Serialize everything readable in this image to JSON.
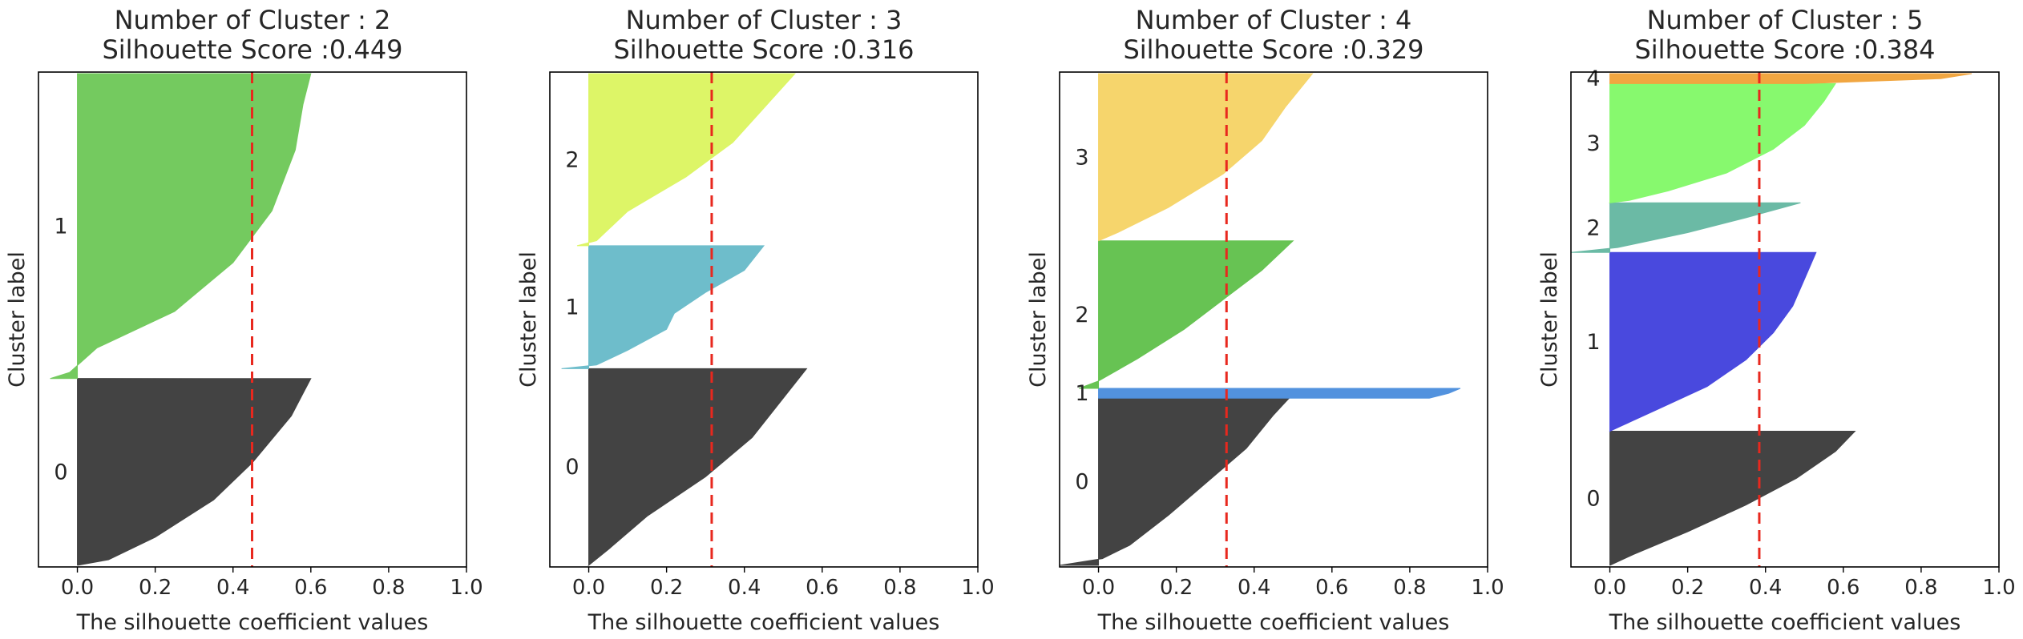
{
  "chart_data": [
    {
      "type": "silhouette",
      "title_line1": "Number of Cluster : 2",
      "title_line2": "Silhouette Score :0.449",
      "xlabel": "The silhouette coefficient values",
      "ylabel": "Cluster label",
      "xlim": [
        -0.1,
        1.0
      ],
      "xticks": [
        "0.0",
        "0.2",
        "0.4",
        "0.6",
        "0.8",
        "1.0"
      ],
      "score": 0.449,
      "clusters": [
        {
          "label": "0",
          "size": 0.38,
          "color": "#404040",
          "profile": [
            [
              0,
              0.6
            ],
            [
              0.2,
              0.55
            ],
            [
              0.45,
              0.45
            ],
            [
              0.65,
              0.35
            ],
            [
              0.85,
              0.2
            ],
            [
              0.97,
              0.08
            ],
            [
              1,
              0
            ]
          ]
        },
        {
          "label": "1",
          "size": 0.62,
          "color": "#72c95c",
          "profile": [
            [
              0,
              0.6
            ],
            [
              0.1,
              0.58
            ],
            [
              0.25,
              0.56
            ],
            [
              0.45,
              0.5
            ],
            [
              0.62,
              0.4
            ],
            [
              0.78,
              0.25
            ],
            [
              0.9,
              0.05
            ],
            [
              0.98,
              -0.02
            ],
            [
              1,
              -0.07
            ]
          ]
        }
      ]
    },
    {
      "type": "silhouette",
      "title_line1": "Number of Cluster : 3",
      "title_line2": "Silhouette Score :0.316",
      "xlabel": "The silhouette coefficient values",
      "ylabel": "Cluster label",
      "xlim": [
        -0.1,
        1.0
      ],
      "xticks": [
        "0.0",
        "0.2",
        "0.4",
        "0.6",
        "0.8",
        "1.0"
      ],
      "score": 0.316,
      "clusters": [
        {
          "label": "0",
          "size": 0.4,
          "color": "#404040",
          "profile": [
            [
              0,
              0.56
            ],
            [
              0.15,
              0.5
            ],
            [
              0.35,
              0.42
            ],
            [
              0.55,
              0.3
            ],
            [
              0.75,
              0.15
            ],
            [
              0.92,
              0.05
            ],
            [
              1,
              0
            ]
          ]
        },
        {
          "label": "1",
          "size": 0.25,
          "color": "#6cbcca",
          "profile": [
            [
              0,
              0.45
            ],
            [
              0.2,
              0.4
            ],
            [
              0.38,
              0.3
            ],
            [
              0.55,
              0.22
            ],
            [
              0.68,
              0.2
            ],
            [
              0.85,
              0.1
            ],
            [
              0.97,
              0.02
            ],
            [
              1,
              -0.07
            ]
          ]
        },
        {
          "label": "2",
          "size": 0.35,
          "color": "#ddf564",
          "profile": [
            [
              0,
              0.53
            ],
            [
              0.2,
              0.45
            ],
            [
              0.4,
              0.37
            ],
            [
              0.6,
              0.25
            ],
            [
              0.8,
              0.1
            ],
            [
              0.97,
              0.02
            ],
            [
              1,
              -0.03
            ]
          ]
        }
      ]
    },
    {
      "type": "silhouette",
      "title_line1": "Number of Cluster : 4",
      "title_line2": "Silhouette Score :0.329",
      "xlabel": "The silhouette coefficient values",
      "ylabel": "Cluster label",
      "xlim": [
        -0.1,
        1.0
      ],
      "xticks": [
        "0.0",
        "0.2",
        "0.4",
        "0.6",
        "0.8",
        "1.0"
      ],
      "score": 0.329,
      "clusters": [
        {
          "label": "0",
          "size": 0.34,
          "color": "#404040",
          "profile": [
            [
              0,
              0.49
            ],
            [
              0.1,
              0.45
            ],
            [
              0.3,
              0.38
            ],
            [
              0.5,
              0.28
            ],
            [
              0.7,
              0.18
            ],
            [
              0.88,
              0.08
            ],
            [
              0.96,
              0.01
            ],
            [
              1,
              -0.1
            ]
          ]
        },
        {
          "label": "1",
          "size": 0.02,
          "color": "#4f90de",
          "profile": [
            [
              0,
              0.93
            ],
            [
              0.5,
              0.9
            ],
            [
              1,
              0.85
            ]
          ]
        },
        {
          "label": "2",
          "size": 0.3,
          "color": "#64c250",
          "profile": [
            [
              0,
              0.5
            ],
            [
              0.2,
              0.42
            ],
            [
              0.4,
              0.32
            ],
            [
              0.6,
              0.22
            ],
            [
              0.8,
              0.1
            ],
            [
              0.95,
              0.0
            ],
            [
              1,
              -0.05
            ]
          ]
        },
        {
          "label": "3",
          "size": 0.34,
          "color": "#f6d56a",
          "profile": [
            [
              0,
              0.55
            ],
            [
              0.2,
              0.48
            ],
            [
              0.4,
              0.42
            ],
            [
              0.6,
              0.32
            ],
            [
              0.8,
              0.18
            ],
            [
              0.95,
              0.05
            ],
            [
              1,
              0.0
            ]
          ]
        }
      ]
    },
    {
      "type": "silhouette",
      "title_line1": "Number of Cluster : 5",
      "title_line2": "Silhouette Score :0.384",
      "xlabel": "The silhouette coefficient values",
      "ylabel": "Cluster label",
      "xlim": [
        -0.1,
        1.0
      ],
      "xticks": [
        "0.0",
        "0.2",
        "0.4",
        "0.6",
        "0.8",
        "1.0"
      ],
      "score": 0.384,
      "clusters": [
        {
          "label": "0",
          "size": 0.27,
          "color": "#404040",
          "profile": [
            [
              0,
              0.63
            ],
            [
              0.15,
              0.58
            ],
            [
              0.35,
              0.48
            ],
            [
              0.55,
              0.35
            ],
            [
              0.75,
              0.2
            ],
            [
              0.92,
              0.06
            ],
            [
              1,
              0
            ]
          ]
        },
        {
          "label": "1",
          "size": 0.36,
          "color": "#4646de",
          "profile": [
            [
              0,
              0.53
            ],
            [
              0.15,
              0.5
            ],
            [
              0.3,
              0.47
            ],
            [
              0.45,
              0.42
            ],
            [
              0.6,
              0.35
            ],
            [
              0.75,
              0.25
            ],
            [
              0.88,
              0.12
            ],
            [
              0.97,
              0.03
            ],
            [
              1,
              0
            ]
          ]
        },
        {
          "label": "2",
          "size": 0.1,
          "color": "#69b9a4",
          "profile": [
            [
              0,
              0.49
            ],
            [
              0.3,
              0.35
            ],
            [
              0.6,
              0.2
            ],
            [
              0.9,
              0.02
            ],
            [
              1,
              -0.1
            ]
          ]
        },
        {
          "label": "3",
          "size": 0.24,
          "color": "#85f96c",
          "profile": [
            [
              0,
              0.58
            ],
            [
              0.15,
              0.55
            ],
            [
              0.35,
              0.5
            ],
            [
              0.55,
              0.42
            ],
            [
              0.75,
              0.3
            ],
            [
              0.9,
              0.15
            ],
            [
              0.98,
              0.05
            ],
            [
              1,
              0
            ]
          ]
        },
        {
          "label": "4",
          "size": 0.02,
          "color": "#f1a53e",
          "profile": [
            [
              0,
              0.93
            ],
            [
              0.5,
              0.85
            ],
            [
              1,
              0.5
            ]
          ]
        }
      ]
    }
  ]
}
